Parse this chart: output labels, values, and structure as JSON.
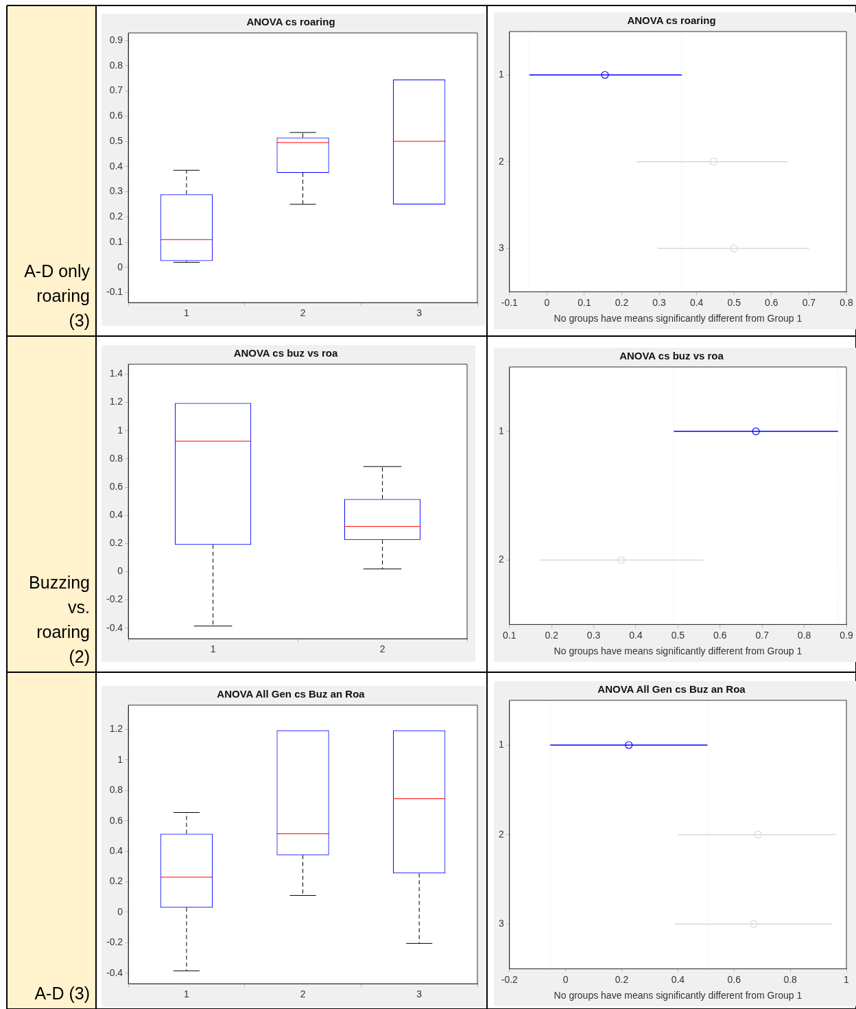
{
  "chart_data": [
    {
      "type": "box",
      "title": "ANOVA cs roaring",
      "categories": [
        "1",
        "2",
        "3"
      ],
      "color": "#0000ff",
      "ylim": [
        -0.14,
        0.93
      ],
      "yticks": [
        -0.1,
        0,
        0.1,
        0.2,
        0.3,
        0.4,
        0.5,
        0.6,
        0.7,
        0.8,
        0.9
      ],
      "annotations": [
        "A-D only roaring (3)"
      ],
      "boxes": [
        {
          "low": 0.02,
          "q1": 0.025,
          "median": 0.11,
          "q3": 0.29,
          "high": 0.385
        },
        {
          "low": 0.25,
          "q1": 0.375,
          "median": 0.495,
          "q3": 0.515,
          "high": 0.535
        },
        {
          "low": 0.25,
          "q1": 0.25,
          "median": 0.5,
          "q3": 0.745,
          "high": 0.745
        }
      ]
    },
    {
      "type": "scatter",
      "orientation": "horizontal",
      "title": "ANOVA cs roaring",
      "xlabel": "No groups have means significantly different from Group 1",
      "categories": [
        "1",
        "2",
        "3"
      ],
      "marker": "circle",
      "xlim": [
        -0.1,
        0.8
      ],
      "xticks": [
        -0.1,
        0,
        0.1,
        0.2,
        0.3,
        0.4,
        0.5,
        0.6,
        0.7,
        0.8
      ],
      "values": [
        0.155,
        0.445,
        0.5
      ],
      "errors": [
        [
          -0.047,
          0.36
        ],
        [
          0.24,
          0.645
        ],
        [
          0.295,
          0.7
        ]
      ],
      "colors": [
        "#0000ff",
        "#d9d9d9",
        "#d9d9d9"
      ],
      "ref_lines": [
        {
          "axis": "x",
          "value": -0.047,
          "color": "#d9d9d9",
          "line_style": "dotted"
        },
        {
          "axis": "x",
          "value": 0.36,
          "color": "#d9d9d9",
          "line_style": "dotted"
        }
      ]
    },
    {
      "type": "box",
      "title": "ANOVA cs buz vs roa",
      "categories": [
        "1",
        "2"
      ],
      "color": "#0000ff",
      "ylim": [
        -0.475,
        1.47
      ],
      "yticks": [
        -0.4,
        -0.2,
        0,
        0.2,
        0.4,
        0.6,
        0.8,
        1,
        1.2,
        1.4
      ],
      "annotations": [
        "Buzzing vs. roaring (2)"
      ],
      "boxes": [
        {
          "low": -0.385,
          "q1": 0.19,
          "median": 0.925,
          "q3": 1.195,
          "high": 1.195
        },
        {
          "low": 0.02,
          "q1": 0.225,
          "median": 0.32,
          "q3": 0.515,
          "high": 0.745
        }
      ]
    },
    {
      "type": "scatter",
      "orientation": "horizontal",
      "title": "ANOVA cs buz vs roa",
      "xlabel": "No groups have means significantly different from Group 1",
      "categories": [
        "1",
        "2"
      ],
      "marker": "circle",
      "xlim": [
        0.1,
        0.9
      ],
      "xticks": [
        0.1,
        0.2,
        0.3,
        0.4,
        0.5,
        0.6,
        0.7,
        0.8,
        0.9
      ],
      "values": [
        0.685,
        0.365
      ],
      "errors": [
        [
          0.49,
          0.88
        ],
        [
          0.17,
          0.56
        ]
      ],
      "colors": [
        "#0000ff",
        "#d9d9d9"
      ],
      "ref_lines": [
        {
          "axis": "x",
          "value": 0.49,
          "color": "#d9d9d9",
          "line_style": "dotted"
        },
        {
          "axis": "x",
          "value": 0.88,
          "color": "#d9d9d9",
          "line_style": "dotted"
        }
      ]
    },
    {
      "type": "box",
      "title": "ANOVA All Gen cs Buz an Roa",
      "categories": [
        "1",
        "2",
        "3"
      ],
      "color": "#0000ff",
      "ylim": [
        -0.47,
        1.36
      ],
      "yticks": [
        -0.4,
        -0.2,
        0,
        0.2,
        0.4,
        0.6,
        0.8,
        1,
        1.2
      ],
      "annotations": [
        "A-D (3)"
      ],
      "boxes": [
        {
          "low": -0.385,
          "q1": 0.03,
          "median": 0.23,
          "q3": 0.515,
          "high": 0.655
        },
        {
          "low": 0.11,
          "q1": 0.375,
          "median": 0.515,
          "q3": 1.195,
          "high": 1.195
        },
        {
          "low": -0.205,
          "q1": 0.255,
          "median": 0.745,
          "q3": 1.195,
          "high": 1.195
        }
      ]
    },
    {
      "type": "scatter",
      "orientation": "horizontal",
      "title": "ANOVA All Gen cs Buz an Roa",
      "xlabel": "No groups have means significantly different from Group 1",
      "categories": [
        "1",
        "2",
        "3"
      ],
      "marker": "circle",
      "xlim": [
        -0.2,
        1
      ],
      "xticks": [
        -0.2,
        0,
        0.2,
        0.4,
        0.6,
        0.8,
        1
      ],
      "values": [
        0.225,
        0.685,
        0.67
      ],
      "errors": [
        [
          -0.055,
          0.505
        ],
        [
          0.4,
          0.965
        ],
        [
          0.39,
          0.95
        ]
      ],
      "colors": [
        "#0000ff",
        "#d9d9d9",
        "#d9d9d9"
      ],
      "ref_lines": [
        {
          "axis": "x",
          "value": -0.055,
          "color": "#d9d9d9",
          "line_style": "dotted"
        },
        {
          "axis": "x",
          "value": 0.505,
          "color": "#d9d9d9",
          "line_style": "dotted"
        }
      ]
    }
  ]
}
